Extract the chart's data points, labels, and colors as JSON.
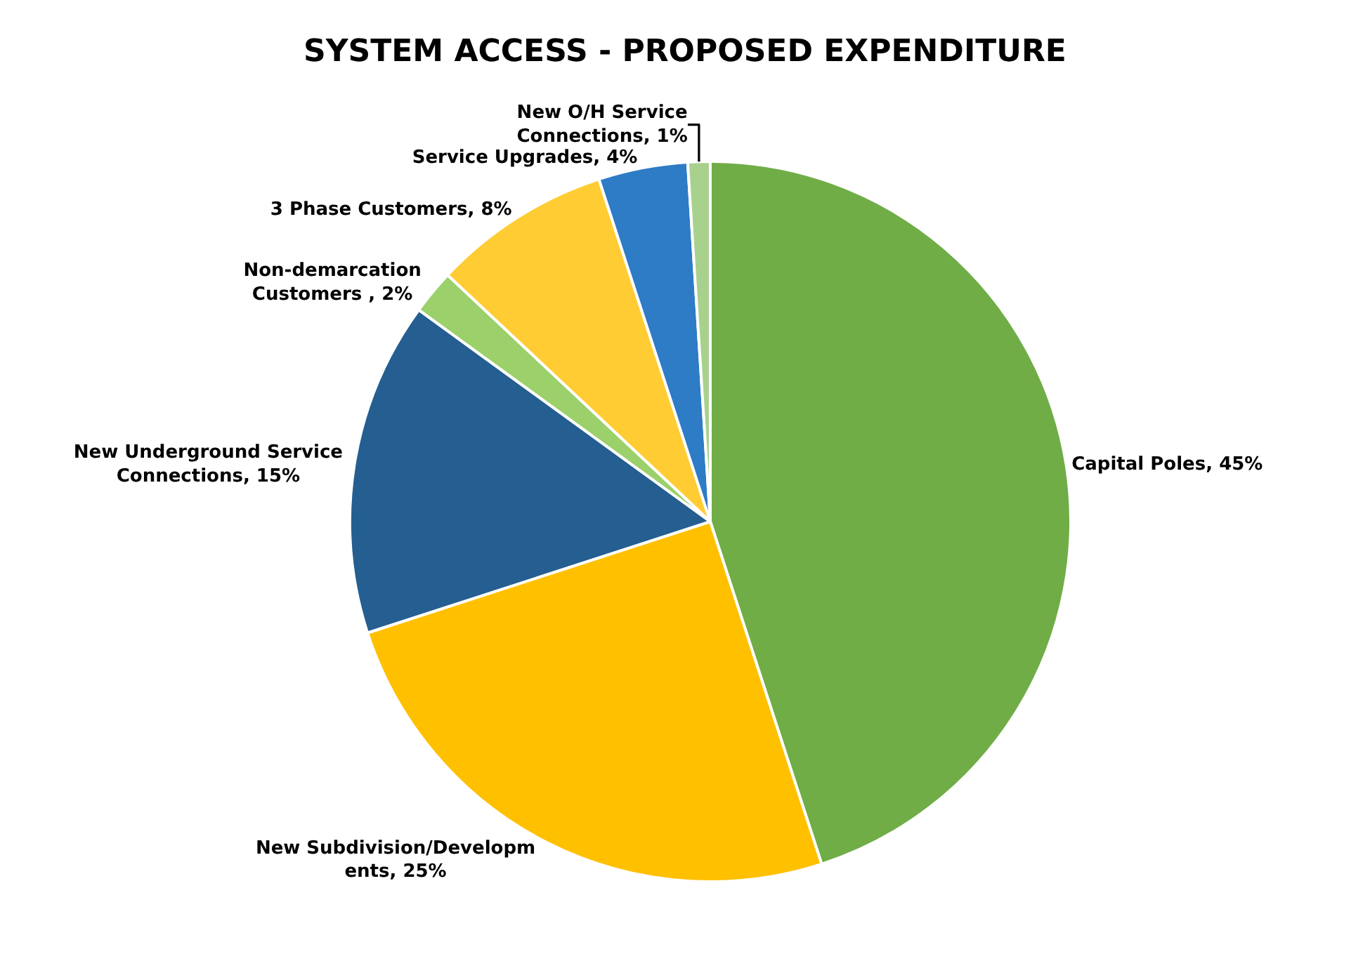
{
  "chart_data": {
    "type": "pie",
    "title": "SYSTEM ACCESS - PROPOSED EXPENDITURE",
    "categories": [
      "Capital Poles",
      "New Subdivision/Developments",
      "New Underground Service Connections",
      "Non-demarcation Customers ",
      "3 Phase Customers",
      "Service Upgrades",
      "New O/H Service Connections"
    ],
    "values": [
      45,
      25,
      15,
      2,
      8,
      4,
      1
    ],
    "colors": [
      "#70ad47",
      "#ffc000",
      "#255e91",
      "#9bd06a",
      "#ffcc33",
      "#2e7bc6",
      "#a9d18e"
    ],
    "value_labels": [
      "45%",
      "25%",
      "15%",
      "2%",
      "8%",
      "4%",
      "1%"
    ],
    "legend": false
  }
}
